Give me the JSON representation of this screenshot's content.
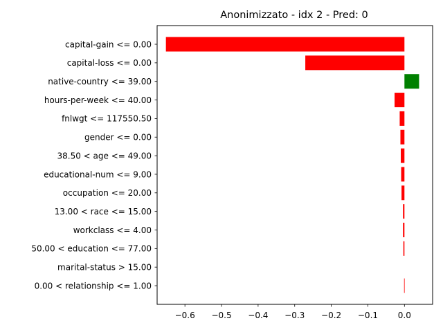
{
  "chart_data": {
    "type": "bar",
    "orientation": "horizontal",
    "title": "Anonimizzato - idx 2 - Pred: 0",
    "xlabel": "",
    "ylabel": "",
    "xlim": [
      -0.676,
      0.077
    ],
    "xticks": [
      -0.6,
      -0.5,
      -0.4,
      -0.3,
      -0.2,
      -0.1,
      0.0
    ],
    "xtick_labels": [
      "−0.6",
      "−0.5",
      "−0.4",
      "−0.3",
      "−0.2",
      "−0.1",
      "0.0"
    ],
    "grid": false,
    "colors": {
      "negative": "#ff0000",
      "positive": "#008000"
    },
    "categories": [
      "capital-gain <= 0.00",
      "capital-loss <= 0.00",
      "native-country <= 39.00",
      "hours-per-week <= 40.00",
      "fnlwgt <= 117550.50",
      "gender <= 0.00",
      "38.50 < age <= 49.00",
      "educational-num <= 9.00",
      "occupation <= 20.00",
      "13.00 < race <= 15.00",
      "workclass <= 4.00",
      "50.00 < education <= 77.00",
      "marital-status > 15.00",
      "0.00 < relationship <= 1.00"
    ],
    "values": [
      -0.652,
      -0.271,
      0.04,
      -0.027,
      -0.013,
      -0.011,
      -0.01,
      -0.009,
      -0.008,
      -0.004,
      -0.004,
      -0.003,
      0.0,
      -0.001
    ]
  }
}
